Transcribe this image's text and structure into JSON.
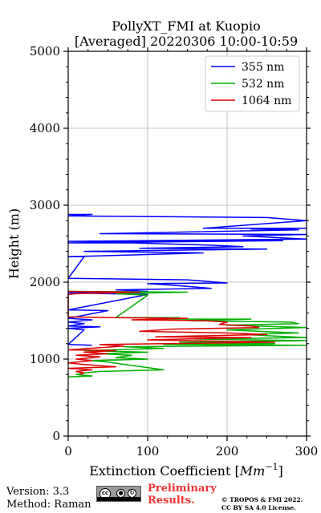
{
  "chart_data": {
    "type": "line",
    "title": "PollyXT_FMI at Kuopio",
    "subtitle": "[Averaged] 20220306 10:00-10:59",
    "xlabel": "Extinction Coefficient [",
    "xlabel_unit": "Mm",
    "xlabel_exp": "−1",
    "xlabel_close": "]",
    "ylabel": "Height (m)",
    "xlim": [
      0,
      300
    ],
    "ylim": [
      0,
      5000
    ],
    "x_ticks": [
      "0",
      "100",
      "200",
      "300"
    ],
    "y_ticks": [
      "0",
      "1000",
      "2000",
      "3000",
      "4000",
      "5000"
    ],
    "grid": true,
    "legend_position": "top-right",
    "series": [
      {
        "name": "355 nm",
        "color": "#0000ff",
        "points": [
          [
            0,
            2880
          ],
          [
            30,
            2880
          ],
          [
            0,
            2860
          ],
          [
            130,
            2850
          ],
          [
            250,
            2840
          ],
          [
            300,
            2800
          ],
          [
            170,
            2700
          ],
          [
            300,
            2700
          ],
          [
            230,
            2690
          ],
          [
            290,
            2680
          ],
          [
            40,
            2630
          ],
          [
            300,
            2620
          ],
          [
            220,
            2600
          ],
          [
            300,
            2560
          ],
          [
            0,
            2530
          ],
          [
            270,
            2540
          ],
          [
            0,
            2510
          ],
          [
            80,
            2510
          ],
          [
            180,
            2480
          ],
          [
            220,
            2460
          ],
          [
            90,
            2440
          ],
          [
            250,
            2430
          ],
          [
            20,
            2400
          ],
          [
            170,
            2380
          ],
          [
            0,
            2330
          ],
          [
            20,
            2330
          ],
          [
            0,
            2050
          ],
          [
            150,
            2030
          ],
          [
            200,
            1990
          ],
          [
            100,
            1980
          ],
          [
            130,
            1960
          ],
          [
            180,
            1920
          ],
          [
            60,
            1900
          ],
          [
            100,
            1880
          ],
          [
            0,
            1860
          ],
          [
            100,
            1840
          ],
          [
            0,
            1640
          ],
          [
            50,
            1630
          ],
          [
            0,
            1530
          ],
          [
            30,
            1510
          ],
          [
            0,
            1480
          ],
          [
            20,
            1460
          ],
          [
            0,
            1430
          ],
          [
            40,
            1420
          ],
          [
            0,
            1400
          ],
          [
            20,
            1380
          ],
          [
            0,
            1190
          ],
          [
            30,
            1180
          ]
        ]
      },
      {
        "name": "532 nm",
        "color": "#00b000",
        "points": [
          [
            0,
            1880
          ],
          [
            150,
            1870
          ],
          [
            60,
            1850
          ],
          [
            100,
            1830
          ],
          [
            60,
            1540
          ],
          [
            140,
            1540
          ],
          [
            120,
            1520
          ],
          [
            230,
            1520
          ],
          [
            150,
            1500
          ],
          [
            280,
            1480
          ],
          [
            290,
            1460
          ],
          [
            200,
            1440
          ],
          [
            300,
            1410
          ],
          [
            200,
            1380
          ],
          [
            240,
            1360
          ],
          [
            290,
            1340
          ],
          [
            220,
            1320
          ],
          [
            260,
            1300
          ],
          [
            300,
            1280
          ],
          [
            160,
            1260
          ],
          [
            300,
            1240
          ],
          [
            140,
            1220
          ],
          [
            260,
            1200
          ],
          [
            120,
            1190
          ],
          [
            300,
            1180
          ],
          [
            70,
            1160
          ],
          [
            120,
            1140
          ],
          [
            20,
            1110
          ],
          [
            100,
            1090
          ],
          [
            40,
            1070
          ],
          [
            80,
            1050
          ],
          [
            60,
            1020
          ],
          [
            100,
            1000
          ],
          [
            30,
            980
          ],
          [
            50,
            960
          ],
          [
            120,
            860
          ],
          [
            40,
            840
          ],
          [
            20,
            820
          ],
          [
            10,
            800
          ],
          [
            30,
            780
          ],
          [
            0,
            770
          ]
        ]
      },
      {
        "name": "1064 nm",
        "color": "#dd0000",
        "points": [
          [
            0,
            1880
          ],
          [
            90,
            1870
          ],
          [
            10,
            1850
          ],
          [
            0,
            1840
          ],
          [
            0,
            1550
          ],
          [
            50,
            1540
          ],
          [
            150,
            1530
          ],
          [
            80,
            1510
          ],
          [
            170,
            1500
          ],
          [
            200,
            1480
          ],
          [
            190,
            1450
          ],
          [
            230,
            1430
          ],
          [
            240,
            1410
          ],
          [
            130,
            1390
          ],
          [
            90,
            1360
          ],
          [
            200,
            1340
          ],
          [
            250,
            1320
          ],
          [
            110,
            1290
          ],
          [
            230,
            1280
          ],
          [
            100,
            1250
          ],
          [
            260,
            1220
          ],
          [
            40,
            1190
          ],
          [
            70,
            1170
          ],
          [
            0,
            1120
          ],
          [
            60,
            1110
          ],
          [
            20,
            1090
          ],
          [
            50,
            1070
          ],
          [
            10,
            1050
          ],
          [
            40,
            1030
          ],
          [
            10,
            1000
          ],
          [
            30,
            980
          ],
          [
            0,
            950
          ],
          [
            20,
            930
          ],
          [
            60,
            900
          ],
          [
            0,
            880
          ],
          [
            30,
            860
          ],
          [
            10,
            840
          ],
          [
            20,
            820
          ],
          [
            15,
            800
          ]
        ]
      }
    ]
  },
  "footer": {
    "version": "Version: 3.3",
    "method": "Method: Raman",
    "preliminary_line1": "Preliminary",
    "preliminary_line2": "Results.",
    "copyright_line1": "© TROPOS & FMI 2022.",
    "copyright_line2": "CC BY SA 4.0 License.",
    "badge_text": "cc",
    "preliminary_color": "#ee3333"
  }
}
